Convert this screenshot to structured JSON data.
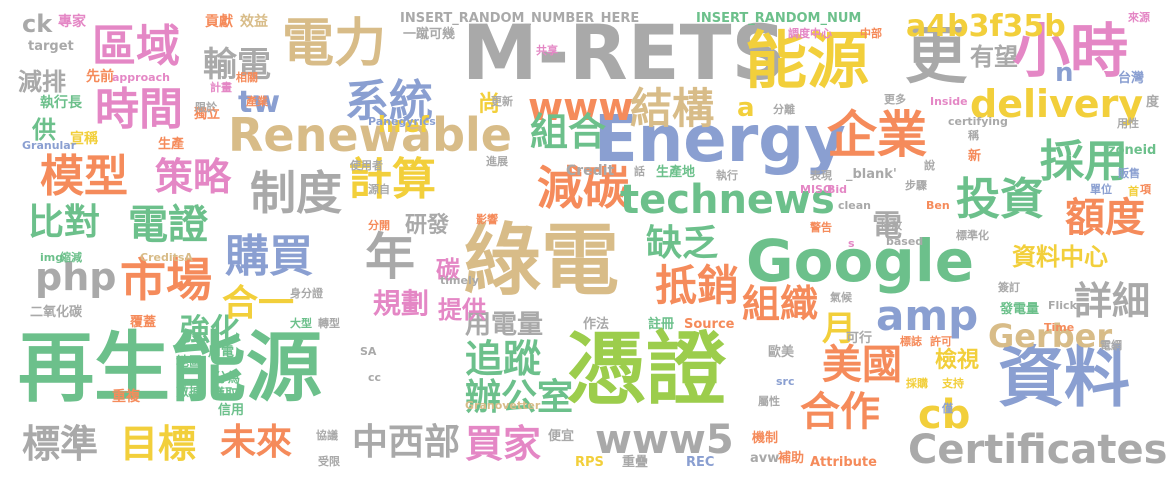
{
  "palette": {
    "green": "#6cc08b",
    "lime": "#9ccd4c",
    "gray": "#a9a9a9",
    "blue": "#8a9fd1",
    "orange": "#f58b5b",
    "pink": "#e487c5",
    "tan": "#d8bc88",
    "yellow": "#f2cf3b"
  },
  "words": [
    "再生能源",
    "憑證",
    "綠電",
    "資料",
    "M-RETS",
    "Energy",
    "Google",
    "能源",
    "更",
    "小時",
    "企業",
    "電力",
    "區域",
    "Renewable",
    "時間",
    "模型",
    "策略",
    "制度",
    "計算",
    "減碳",
    "technews",
    "投資",
    "額度",
    "採用",
    "www",
    "結構",
    "組合",
    "系統",
    "tw",
    "輸電",
    "php",
    "比對",
    "電證",
    "市場",
    "購買",
    "年",
    "缺乏",
    "抵銷",
    "組織",
    "amp",
    "詳細",
    "資料中心",
    "delivery",
    "a4b3f35b",
    "有望",
    "Certificates",
    "Gerber",
    "cb",
    "合作",
    "美國",
    "www5",
    "買家",
    "中西部",
    "未來",
    "目標",
    "標準",
    "追蹤",
    "辦公室",
    "用電量",
    "規劃",
    "強化",
    "合一",
    "提供",
    "Credit",
    "檢視",
    "月",
    "碳",
    "研發",
    "電",
    "尚",
    "a",
    "href",
    "ck",
    "n",
    "減排",
    "專家",
    "INSERT_RANDOM_NUMBER_HERE",
    "INSERT_RANDOM_NUM",
    "來源",
    "供",
    "宣稱",
    "執行長",
    "target",
    "先前",
    "approach",
    "貢獻",
    "效益",
    "一蹴可幾",
    "共享",
    "調度中心",
    "中部",
    "台灣",
    "分離",
    "更新",
    "Inside",
    "Panegyrics",
    "certifying",
    "Granular",
    "生產",
    "獨立",
    "計畫",
    "限於",
    "相關",
    "產業",
    "更多",
    "用性",
    "稱",
    "新",
    "zoneid",
    "販售",
    "項",
    "使用者",
    "進展",
    "話",
    "生產地",
    "執行",
    "表現",
    "_blank'",
    "說",
    "步驟",
    "單位",
    "首",
    "源自",
    "影響",
    "MISO",
    "Bid",
    "clean",
    "Ben",
    "警告",
    "排放",
    "based",
    "標準化",
    "分開",
    "s",
    "img",
    "縮減",
    "CreditsA",
    "身分證",
    "氣候",
    "簽訂",
    "二氧化碳",
    "覆蓋",
    "timely",
    "大型",
    "轉型",
    "Flickr",
    "發電量",
    "作法",
    "註冊",
    "Source",
    "Time",
    "SA",
    "地區",
    "用電",
    "分為",
    "數據",
    "獲取",
    "信用",
    "重複",
    "可行",
    "標誌",
    "許可",
    "電網",
    "歐美",
    "src",
    "支持",
    "採購",
    "屬性",
    "僅",
    "cc",
    "Granovetter",
    "協議",
    "受限",
    "便宜",
    "機制",
    "avw",
    "補助",
    "Attribute",
    "RPS",
    "重疊",
    "REC",
    "度"
  ]
}
